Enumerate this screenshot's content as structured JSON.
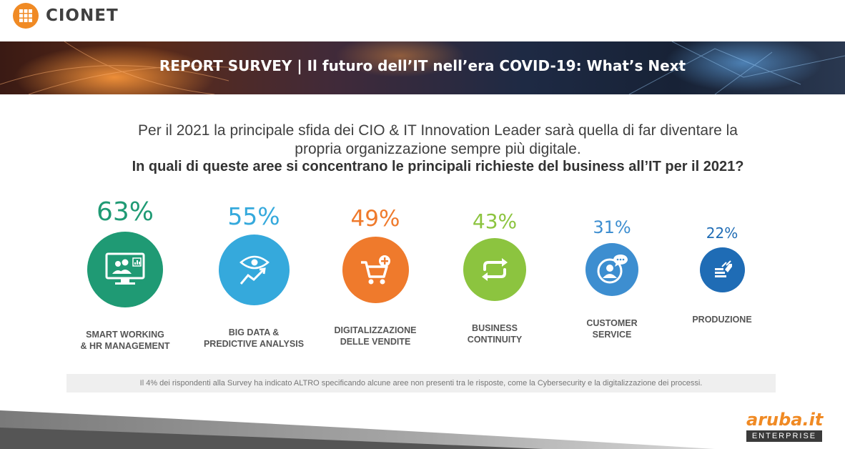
{
  "brand": {
    "name": "CIONET",
    "color": "#f08a24"
  },
  "banner": {
    "title": "REPORT SURVEY  | Il futuro dell’IT nell’era COVID-19: What’s Next"
  },
  "intro": {
    "line1": "Per il 2021 la principale sfida dei CIO & IT Innovation Leader sarà quella di far diventare la",
    "line2": "propria organizzazione sempre più digitale.",
    "question": "In quali di queste aree si concentrano le principali richieste del business all’IT per il 2021?"
  },
  "chart_data": {
    "type": "bar",
    "style": "proportional circles with percentage labels",
    "categories": [
      "SMART WORKING & HR MANAGEMENT",
      "BIG DATA & PREDICTIVE ANALYSIS",
      "DIGITALIZZAZIONE DELLE VENDITE",
      "BUSINESS CONTINUITY",
      "CUSTOMER SERVICE",
      "PRODUZIONE"
    ],
    "values": [
      63,
      55,
      49,
      43,
      31,
      22
    ],
    "unit": "%",
    "items": [
      {
        "pct_label": "63%",
        "label_lines": [
          "SMART WORKING",
          "& HR MANAGEMENT"
        ],
        "color": "#1f9a74",
        "icon": "video-conference-icon"
      },
      {
        "pct_label": "55%",
        "label_lines": [
          "BIG DATA &",
          "PREDICTIVE ANALYSIS"
        ],
        "color": "#35a9dc",
        "icon": "eye-analytics-icon"
      },
      {
        "pct_label": "49%",
        "label_lines": [
          "DIGITALIZZAZIONE",
          "DELLE VENDITE"
        ],
        "color": "#ef7a2c",
        "icon": "cart-add-icon"
      },
      {
        "pct_label": "43%",
        "label_lines": [
          "BUSINESS",
          "CONTINUITY"
        ],
        "color": "#8cc43f",
        "icon": "repeat-arrows-icon"
      },
      {
        "pct_label": "31%",
        "label_lines": [
          "CUSTOMER",
          "SERVICE"
        ],
        "color": "#3d8ed0",
        "icon": "customer-chat-icon"
      },
      {
        "pct_label": "22%",
        "label_lines": [
          "PRODUZIONE"
        ],
        "color": "#1f6cb5",
        "icon": "production-stack-icon"
      }
    ]
  },
  "footnote": "Il 4% dei rispondenti alla Survey ha indicato ALTRO specificando alcune aree non presenti tra le risposte, come la Cybersecurity e la digitalizzazione dei processi.",
  "footer_brand": {
    "word": "aruba.it",
    "sub": "ENTERPRISE",
    "color": "#f08a24"
  }
}
